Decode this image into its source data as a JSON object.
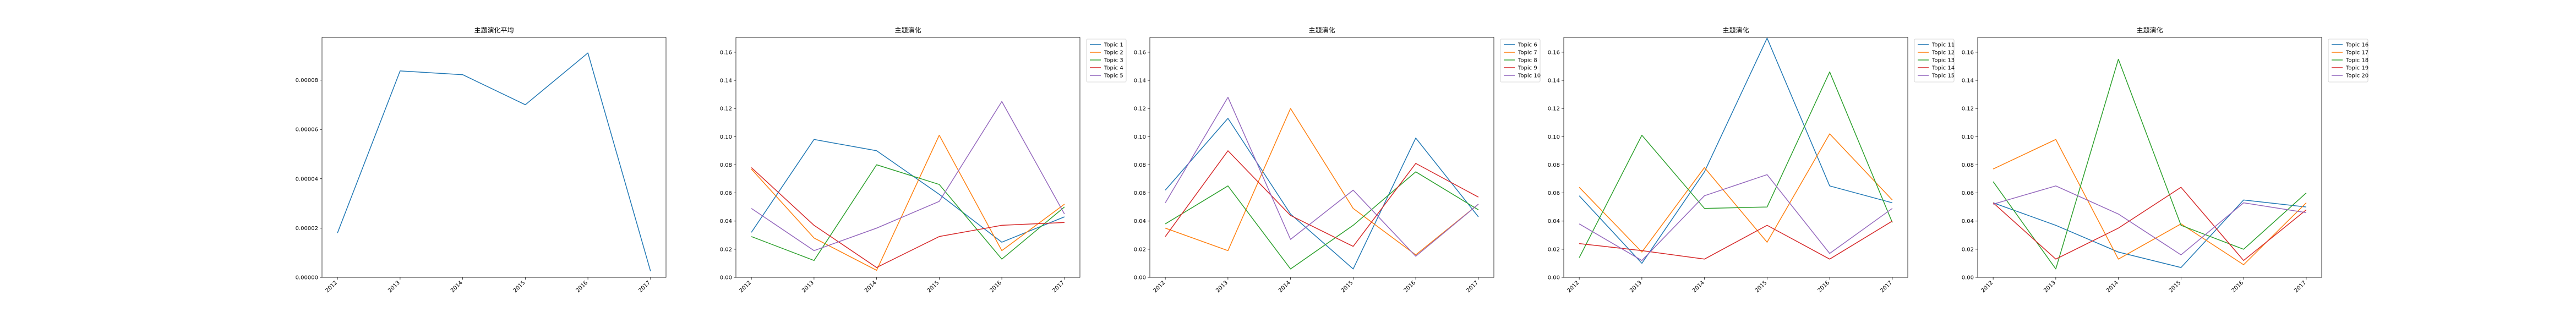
{
  "chart_data": [
    {
      "type": "line",
      "title": "主题演化平均",
      "categories": [
        "2012",
        "2013",
        "2014",
        "2015",
        "2016",
        "2017"
      ],
      "ylim": [
        0.0,
        9.73e-05
      ],
      "yticks": [
        0.0,
        2e-05,
        4e-05,
        6e-05,
        8e-05
      ],
      "ytick_labels": [
        "0.00000",
        "0.00002",
        "0.00004",
        "0.00006",
        "0.00008"
      ],
      "grid": false,
      "series": [
        {
          "color": "#1f77b4",
          "values": [
            1.8e-05,
            8.37e-05,
            8.22e-05,
            7e-05,
            9.1e-05,
            2.5e-06
          ]
        }
      ]
    },
    {
      "type": "line",
      "title": "主题演化",
      "categories": [
        "2012",
        "2013",
        "2014",
        "2015",
        "2016",
        "2017"
      ],
      "ylim": [
        0.0,
        0.1705
      ],
      "yticks": [
        0.0,
        0.02,
        0.04,
        0.06,
        0.08,
        0.1,
        0.12,
        0.14,
        0.16
      ],
      "ytick_labels": [
        "0.00",
        "0.02",
        "0.04",
        "0.06",
        "0.08",
        "0.10",
        "0.12",
        "0.14",
        "0.16"
      ],
      "legend": "outside-top-right",
      "grid": false,
      "series": [
        {
          "name": "Topic 1",
          "color": "#1f77b4",
          "values": [
            0.032,
            0.098,
            0.09,
            0.059,
            0.025,
            0.043
          ]
        },
        {
          "name": "Topic 2",
          "color": "#ff7f0e",
          "values": [
            0.077,
            0.028,
            0.005,
            0.101,
            0.019,
            0.052
          ]
        },
        {
          "name": "Topic 3",
          "color": "#2ca02c",
          "values": [
            0.029,
            0.012,
            0.08,
            0.066,
            0.013,
            0.05
          ]
        },
        {
          "name": "Topic 4",
          "color": "#d62728",
          "values": [
            0.078,
            0.037,
            0.007,
            0.029,
            0.037,
            0.039
          ]
        },
        {
          "name": "Topic 5",
          "color": "#9467bd",
          "values": [
            0.049,
            0.019,
            0.035,
            0.054,
            0.125,
            0.045
          ]
        }
      ]
    },
    {
      "type": "line",
      "title": "主题演化",
      "categories": [
        "2012",
        "2013",
        "2014",
        "2015",
        "2016",
        "2017"
      ],
      "ylim": [
        0.0,
        0.1705
      ],
      "yticks": [
        0.0,
        0.02,
        0.04,
        0.06,
        0.08,
        0.1,
        0.12,
        0.14,
        0.16
      ],
      "ytick_labels": [
        "0.00",
        "0.02",
        "0.04",
        "0.06",
        "0.08",
        "0.10",
        "0.12",
        "0.14",
        "0.16"
      ],
      "legend": "outside-top-right",
      "grid": false,
      "series": [
        {
          "name": "Topic 6",
          "color": "#1f77b4",
          "values": [
            0.062,
            0.113,
            0.045,
            0.006,
            0.099,
            0.043
          ]
        },
        {
          "name": "Topic 7",
          "color": "#ff7f0e",
          "values": [
            0.035,
            0.019,
            0.12,
            0.049,
            0.016,
            0.052
          ]
        },
        {
          "name": "Topic 8",
          "color": "#2ca02c",
          "values": [
            0.038,
            0.065,
            0.006,
            0.037,
            0.075,
            0.048
          ]
        },
        {
          "name": "Topic 9",
          "color": "#d62728",
          "values": [
            0.029,
            0.09,
            0.044,
            0.022,
            0.081,
            0.057
          ]
        },
        {
          "name": "Topic 10",
          "color": "#9467bd",
          "values": [
            0.053,
            0.128,
            0.027,
            0.062,
            0.015,
            0.052
          ]
        }
      ]
    },
    {
      "type": "line",
      "title": "主题演化",
      "categories": [
        "2012",
        "2013",
        "2014",
        "2015",
        "2016",
        "2017"
      ],
      "ylim": [
        0.0,
        0.1705
      ],
      "yticks": [
        0.0,
        0.02,
        0.04,
        0.06,
        0.08,
        0.1,
        0.12,
        0.14,
        0.16
      ],
      "ytick_labels": [
        "0.00",
        "0.02",
        "0.04",
        "0.06",
        "0.08",
        "0.10",
        "0.12",
        "0.14",
        "0.16"
      ],
      "legend": "outside-top-right",
      "grid": false,
      "series": [
        {
          "name": "Topic 11",
          "color": "#1f77b4",
          "values": [
            0.058,
            0.01,
            0.075,
            0.17,
            0.065,
            0.053
          ]
        },
        {
          "name": "Topic 12",
          "color": "#ff7f0e",
          "values": [
            0.064,
            0.018,
            0.078,
            0.025,
            0.102,
            0.055
          ]
        },
        {
          "name": "Topic 13",
          "color": "#2ca02c",
          "values": [
            0.014,
            0.101,
            0.049,
            0.05,
            0.146,
            0.039
          ]
        },
        {
          "name": "Topic 14",
          "color": "#d62728",
          "values": [
            0.024,
            0.019,
            0.013,
            0.037,
            0.013,
            0.04
          ]
        },
        {
          "name": "Topic 15",
          "color": "#9467bd",
          "values": [
            0.038,
            0.012,
            0.058,
            0.073,
            0.017,
            0.049
          ]
        }
      ]
    },
    {
      "type": "line",
      "title": "主题演化",
      "categories": [
        "2012",
        "2013",
        "2014",
        "2015",
        "2016",
        "2017"
      ],
      "ylim": [
        0.0,
        0.1705
      ],
      "yticks": [
        0.0,
        0.02,
        0.04,
        0.06,
        0.08,
        0.1,
        0.12,
        0.14,
        0.16
      ],
      "ytick_labels": [
        "0.00",
        "0.02",
        "0.04",
        "0.06",
        "0.08",
        "0.10",
        "0.12",
        "0.14",
        "0.16"
      ],
      "legend": "outside-top-right",
      "grid": false,
      "series": [
        {
          "name": "Topic 16",
          "color": "#1f77b4",
          "values": [
            0.053,
            0.037,
            0.018,
            0.007,
            0.055,
            0.05
          ]
        },
        {
          "name": "Topic 17",
          "color": "#ff7f0e",
          "values": [
            0.077,
            0.098,
            0.013,
            0.038,
            0.009,
            0.053
          ]
        },
        {
          "name": "Topic 18",
          "color": "#2ca02c",
          "values": [
            0.068,
            0.006,
            0.155,
            0.037,
            0.02,
            0.06
          ]
        },
        {
          "name": "Topic 19",
          "color": "#d62728",
          "values": [
            0.053,
            0.013,
            0.035,
            0.064,
            0.012,
            0.048
          ]
        },
        {
          "name": "Topic 20",
          "color": "#9467bd",
          "values": [
            0.052,
            0.065,
            0.045,
            0.016,
            0.053,
            0.046
          ]
        }
      ]
    }
  ]
}
